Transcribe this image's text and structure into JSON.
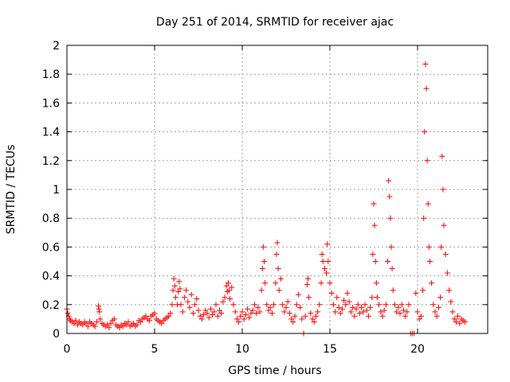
{
  "chart_data": {
    "type": "scatter",
    "title": "Day 251 of 2014, SRMTID for receiver ajac",
    "xlabel": "GPS time / hours",
    "ylabel": "SRMTID / TECUs",
    "xlim": [
      0,
      24
    ],
    "ylim": [
      0,
      2
    ],
    "grid": true,
    "marker": "+",
    "color": "#ff0000",
    "frame_color": "#000000",
    "grid_color": "#a0a0a0",
    "x_ticks": [
      {
        "value": 0,
        "label": "0"
      },
      {
        "value": 5,
        "label": "5"
      },
      {
        "value": 10,
        "label": "10"
      },
      {
        "value": 15,
        "label": "15"
      },
      {
        "value": 20,
        "label": "20"
      }
    ],
    "y_ticks": [
      {
        "value": 0,
        "label": "0"
      },
      {
        "value": 0.2,
        "label": "0.2"
      },
      {
        "value": 0.4,
        "label": "0.4"
      },
      {
        "value": 0.6,
        "label": "0.6"
      },
      {
        "value": 0.8,
        "label": "0.8"
      },
      {
        "value": 1.0,
        "label": "1"
      },
      {
        "value": 1.2,
        "label": "1.2"
      },
      {
        "value": 1.4,
        "label": "1.4"
      },
      {
        "value": 1.6,
        "label": "1.6"
      },
      {
        "value": 1.8,
        "label": "1.8"
      },
      {
        "value": 2.0,
        "label": "2"
      }
    ],
    "series": [
      {
        "name": "SRMTID",
        "points": [
          [
            0.0,
            0.17
          ],
          [
            0.05,
            0.14
          ],
          [
            0.1,
            0.12
          ],
          [
            0.15,
            0.1
          ],
          [
            0.2,
            0.09
          ],
          [
            0.3,
            0.08
          ],
          [
            0.4,
            0.07
          ],
          [
            0.5,
            0.09
          ],
          [
            0.6,
            0.06
          ],
          [
            0.7,
            0.08
          ],
          [
            0.8,
            0.07
          ],
          [
            0.9,
            0.06
          ],
          [
            1.0,
            0.08
          ],
          [
            1.1,
            0.07
          ],
          [
            1.2,
            0.05
          ],
          [
            1.3,
            0.08
          ],
          [
            1.4,
            0.07
          ],
          [
            1.5,
            0.06
          ],
          [
            1.6,
            0.05
          ],
          [
            1.7,
            0.08
          ],
          [
            1.8,
            0.19
          ],
          [
            1.82,
            0.17
          ],
          [
            1.85,
            0.15
          ],
          [
            1.9,
            0.1
          ],
          [
            2.0,
            0.07
          ],
          [
            2.1,
            0.06
          ],
          [
            2.2,
            0.05
          ],
          [
            2.3,
            0.06
          ],
          [
            2.4,
            0.04
          ],
          [
            2.5,
            0.07
          ],
          [
            2.6,
            0.09
          ],
          [
            2.7,
            0.1
          ],
          [
            2.8,
            0.06
          ],
          [
            2.9,
            0.05
          ],
          [
            3.0,
            0.04
          ],
          [
            3.1,
            0.06
          ],
          [
            3.2,
            0.05
          ],
          [
            3.3,
            0.07
          ],
          [
            3.4,
            0.06
          ],
          [
            3.5,
            0.08
          ],
          [
            3.6,
            0.05
          ],
          [
            3.7,
            0.06
          ],
          [
            3.8,
            0.07
          ],
          [
            3.9,
            0.05
          ],
          [
            4.0,
            0.06
          ],
          [
            4.1,
            0.09
          ],
          [
            4.2,
            0.08
          ],
          [
            4.3,
            0.1
          ],
          [
            4.4,
            0.11
          ],
          [
            4.5,
            0.12
          ],
          [
            4.6,
            0.1
          ],
          [
            4.7,
            0.09
          ],
          [
            4.8,
            0.12
          ],
          [
            4.9,
            0.13
          ],
          [
            5.0,
            0.14
          ],
          [
            5.1,
            0.1
          ],
          [
            5.2,
            0.09
          ],
          [
            5.3,
            0.08
          ],
          [
            5.4,
            0.07
          ],
          [
            5.5,
            0.09
          ],
          [
            5.6,
            0.1
          ],
          [
            5.7,
            0.11
          ],
          [
            5.8,
            0.12
          ],
          [
            5.9,
            0.14
          ],
          [
            6.0,
            0.2
          ],
          [
            6.05,
            0.3
          ],
          [
            6.1,
            0.38
          ],
          [
            6.15,
            0.33
          ],
          [
            6.2,
            0.25
          ],
          [
            6.3,
            0.2
          ],
          [
            6.35,
            0.29
          ],
          [
            6.4,
            0.36
          ],
          [
            6.45,
            0.31
          ],
          [
            6.5,
            0.2
          ],
          [
            6.6,
            0.15
          ],
          [
            6.7,
            0.25
          ],
          [
            6.8,
            0.3
          ],
          [
            6.9,
            0.22
          ],
          [
            7.0,
            0.18
          ],
          [
            7.1,
            0.27
          ],
          [
            7.2,
            0.14
          ],
          [
            7.3,
            0.2
          ],
          [
            7.4,
            0.24
          ],
          [
            7.5,
            0.16
          ],
          [
            7.6,
            0.12
          ],
          [
            7.7,
            0.1
          ],
          [
            7.8,
            0.13
          ],
          [
            7.9,
            0.16
          ],
          [
            8.0,
            0.14
          ],
          [
            8.1,
            0.11
          ],
          [
            8.2,
            0.17
          ],
          [
            8.3,
            0.13
          ],
          [
            8.4,
            0.15
          ],
          [
            8.5,
            0.2
          ],
          [
            8.6,
            0.12
          ],
          [
            8.7,
            0.16
          ],
          [
            8.8,
            0.14
          ],
          [
            8.9,
            0.22
          ],
          [
            9.0,
            0.25
          ],
          [
            9.1,
            0.33
          ],
          [
            9.15,
            0.29
          ],
          [
            9.2,
            0.35
          ],
          [
            9.25,
            0.3
          ],
          [
            9.3,
            0.24
          ],
          [
            9.4,
            0.32
          ],
          [
            9.5,
            0.2
          ],
          [
            9.6,
            0.15
          ],
          [
            9.7,
            0.1
          ],
          [
            9.8,
            0.08
          ],
          [
            9.9,
            0.12
          ],
          [
            10.0,
            0.15
          ],
          [
            10.1,
            0.1
          ],
          [
            10.2,
            0.13
          ],
          [
            10.3,
            0.17
          ],
          [
            10.4,
            0.11
          ],
          [
            10.5,
            0.14
          ],
          [
            10.6,
            0.16
          ],
          [
            10.7,
            0.2
          ],
          [
            10.8,
            0.14
          ],
          [
            10.9,
            0.18
          ],
          [
            11.0,
            0.15
          ],
          [
            11.1,
            0.3
          ],
          [
            11.15,
            0.45
          ],
          [
            11.2,
            0.6
          ],
          [
            11.25,
            0.5
          ],
          [
            11.3,
            0.35
          ],
          [
            11.4,
            0.2
          ],
          [
            11.5,
            0.16
          ],
          [
            11.6,
            0.18
          ],
          [
            11.7,
            0.14
          ],
          [
            11.8,
            0.2
          ],
          [
            11.9,
            0.35
          ],
          [
            11.95,
            0.55
          ],
          [
            12.0,
            0.63
          ],
          [
            12.05,
            0.45
          ],
          [
            12.1,
            0.3
          ],
          [
            12.2,
            0.38
          ],
          [
            12.3,
            0.2
          ],
          [
            12.4,
            0.15
          ],
          [
            12.5,
            0.18
          ],
          [
            12.6,
            0.22
          ],
          [
            12.7,
            0.14
          ],
          [
            12.8,
            0.1
          ],
          [
            12.9,
            0.08
          ],
          [
            13.0,
            0.12
          ],
          [
            13.1,
            0.2
          ],
          [
            13.2,
            0.27
          ],
          [
            13.3,
            0.18
          ],
          [
            13.4,
            0.1
          ],
          [
            13.5,
            0.0
          ],
          [
            13.6,
            0.12
          ],
          [
            13.7,
            0.34
          ],
          [
            13.75,
            0.38
          ],
          [
            13.8,
            0.25
          ],
          [
            13.9,
            0.14
          ],
          [
            14.0,
            0.1
          ],
          [
            14.1,
            0.08
          ],
          [
            14.2,
            0.12
          ],
          [
            14.3,
            0.15
          ],
          [
            14.4,
            0.2
          ],
          [
            14.5,
            0.35
          ],
          [
            14.55,
            0.55
          ],
          [
            14.6,
            0.5
          ],
          [
            14.7,
            0.45
          ],
          [
            14.8,
            0.42
          ],
          [
            14.85,
            0.62
          ],
          [
            14.9,
            0.5
          ],
          [
            15.0,
            0.35
          ],
          [
            15.1,
            0.28
          ],
          [
            15.2,
            0.2
          ],
          [
            15.3,
            0.15
          ],
          [
            15.4,
            0.25
          ],
          [
            15.5,
            0.18
          ],
          [
            15.6,
            0.14
          ],
          [
            15.7,
            0.17
          ],
          [
            15.8,
            0.23
          ],
          [
            15.9,
            0.2
          ],
          [
            16.0,
            0.28
          ],
          [
            16.1,
            0.22
          ],
          [
            16.2,
            0.15
          ],
          [
            16.3,
            0.18
          ],
          [
            16.4,
            0.12
          ],
          [
            16.5,
            0.17
          ],
          [
            16.6,
            0.2
          ],
          [
            16.7,
            0.14
          ],
          [
            16.8,
            0.18
          ],
          [
            16.9,
            0.15
          ],
          [
            17.0,
            0.2
          ],
          [
            17.1,
            0.16
          ],
          [
            17.2,
            0.12
          ],
          [
            17.3,
            0.18
          ],
          [
            17.4,
            0.25
          ],
          [
            17.45,
            0.55
          ],
          [
            17.5,
            0.9
          ],
          [
            17.55,
            0.75
          ],
          [
            17.6,
            0.5
          ],
          [
            17.65,
            0.35
          ],
          [
            17.7,
            0.25
          ],
          [
            17.8,
            0.2
          ],
          [
            17.9,
            0.15
          ],
          [
            18.0,
            0.12
          ],
          [
            18.1,
            0.16
          ],
          [
            18.2,
            0.2
          ],
          [
            18.3,
            0.5
          ],
          [
            18.35,
            1.06
          ],
          [
            18.4,
            0.95
          ],
          [
            18.45,
            0.8
          ],
          [
            18.5,
            0.6
          ],
          [
            18.55,
            0.45
          ],
          [
            18.6,
            0.3
          ],
          [
            18.7,
            0.2
          ],
          [
            18.8,
            0.15
          ],
          [
            18.9,
            0.18
          ],
          [
            19.0,
            0.14
          ],
          [
            19.1,
            0.2
          ],
          [
            19.2,
            0.16
          ],
          [
            19.3,
            0.12
          ],
          [
            19.4,
            0.15
          ],
          [
            19.5,
            0.2
          ],
          [
            19.6,
            0.0
          ],
          [
            19.7,
            0.0
          ],
          [
            19.8,
            0.0
          ],
          [
            19.9,
            0.28
          ],
          [
            20.0,
            0.15
          ],
          [
            20.1,
            0.1
          ],
          [
            20.2,
            0.12
          ],
          [
            20.3,
            0.3
          ],
          [
            20.35,
            0.8
          ],
          [
            20.4,
            1.4
          ],
          [
            20.45,
            1.87
          ],
          [
            20.5,
            1.7
          ],
          [
            20.55,
            1.2
          ],
          [
            20.6,
            0.9
          ],
          [
            20.65,
            0.6
          ],
          [
            20.7,
            0.5
          ],
          [
            20.8,
            0.35
          ],
          [
            20.9,
            0.2
          ],
          [
            21.0,
            0.15
          ],
          [
            21.1,
            0.12
          ],
          [
            21.2,
            0.18
          ],
          [
            21.3,
            0.25
          ],
          [
            21.35,
            0.6
          ],
          [
            21.4,
            1.23
          ],
          [
            21.45,
            1.0
          ],
          [
            21.5,
            0.75
          ],
          [
            21.6,
            0.55
          ],
          [
            21.7,
            0.42
          ],
          [
            21.8,
            0.3
          ],
          [
            21.9,
            0.22
          ],
          [
            22.0,
            0.15
          ],
          [
            22.1,
            0.1
          ],
          [
            22.2,
            0.08
          ],
          [
            22.3,
            0.12
          ],
          [
            22.4,
            0.07
          ],
          [
            22.5,
            0.1
          ],
          [
            22.6,
            0.09
          ],
          [
            22.7,
            0.08
          ]
        ]
      }
    ]
  }
}
